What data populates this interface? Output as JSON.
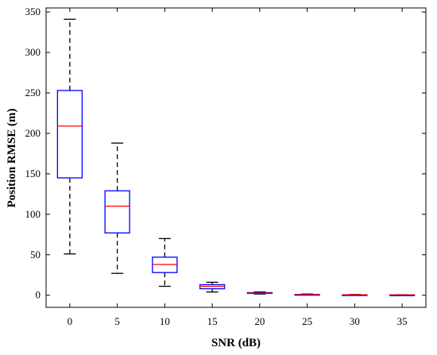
{
  "chart_data": {
    "type": "boxplot",
    "xlabel": "SNR (dB)",
    "ylabel": "Position RMSE (m)",
    "categories": [
      "0",
      "5",
      "10",
      "15",
      "20",
      "25",
      "30",
      "35"
    ],
    "yticks": [
      0,
      50,
      100,
      150,
      200,
      250,
      300,
      350
    ],
    "ylim": [
      -15,
      355
    ],
    "grid": false,
    "boxes": [
      {
        "category": "0",
        "lower_whisker": 51,
        "q1": 145,
        "median": 209,
        "q3": 253,
        "upper_whisker": 341
      },
      {
        "category": "5",
        "lower_whisker": 27,
        "q1": 77,
        "median": 110,
        "q3": 129,
        "upper_whisker": 188
      },
      {
        "category": "10",
        "lower_whisker": 11,
        "q1": 28,
        "median": 38,
        "q3": 47,
        "upper_whisker": 70
      },
      {
        "category": "15",
        "lower_whisker": 4,
        "q1": 8,
        "median": 11,
        "q3": 13,
        "upper_whisker": 16
      },
      {
        "category": "20",
        "lower_whisker": 1.5,
        "q1": 2.2,
        "median": 2.7,
        "q3": 3.2,
        "upper_whisker": 4
      },
      {
        "category": "25",
        "lower_whisker": 0.3,
        "q1": 0.6,
        "median": 0.8,
        "q3": 1.0,
        "upper_whisker": 1.5
      },
      {
        "category": "30",
        "lower_whisker": 0.2,
        "q1": 0.4,
        "median": 0.5,
        "q3": 0.6,
        "upper_whisker": 0.9
      },
      {
        "category": "35",
        "lower_whisker": 0.1,
        "q1": 0.2,
        "median": 0.3,
        "q3": 0.4,
        "upper_whisker": 0.6
      }
    ],
    "colors": {
      "box": "#0000ff",
      "median": "#ff0000",
      "whisker": "#000000",
      "axis": "#000000"
    }
  }
}
